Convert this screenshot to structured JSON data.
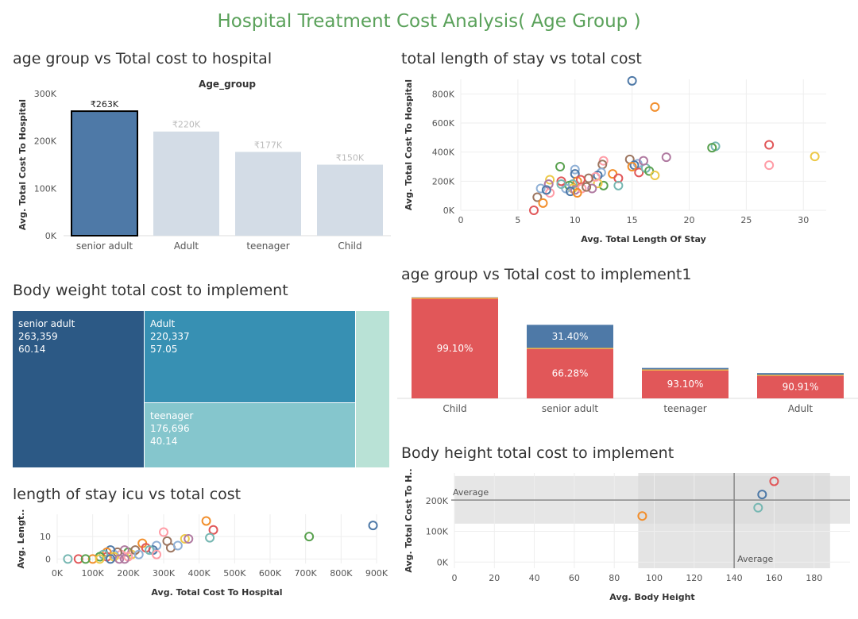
{
  "dashboard_title": "Hospital Treatment Cost Analysis( Age Group )",
  "colors": {
    "title": "#5aa15a",
    "bar_highlight": "#4e79a7",
    "bar_muted": "#d3dce6",
    "stack_primary": "#e15759",
    "stack_secondary": "#4e79a7",
    "treemap": [
      "#2c5985",
      "#3790b3",
      "#85c6cd",
      "#b9e2d6"
    ]
  },
  "chart_data": [
    {
      "id": "bar",
      "type": "bar",
      "title": "age group vs Total cost to hospital",
      "header": "Age_group",
      "ylabel": "Avg. Total Cost To Hospital",
      "categories": [
        "senior adult",
        "Adult",
        "teenager",
        "Child"
      ],
      "values": [
        263000,
        220000,
        177000,
        150000
      ],
      "labels": [
        "₹263K",
        "₹220K",
        "₹177K",
        "₹150K"
      ],
      "yticks": [
        "0K",
        "100K",
        "200K",
        "300K"
      ],
      "ylim": [
        0,
        300000
      ],
      "highlighted": "senior adult"
    },
    {
      "id": "scatter_stay",
      "type": "scatter",
      "title": "total length of stay vs total cost",
      "xlabel": "Avg. Total Length Of Stay",
      "ylabel": "Avg. Total Cost To Hospital",
      "xticks": [
        "0",
        "5",
        "10",
        "15",
        "20",
        "25",
        "30"
      ],
      "yticks": [
        "0K",
        "200K",
        "400K",
        "600K",
        "800K"
      ],
      "xlim": [
        0,
        32
      ],
      "ylim": [
        0,
        900000
      ],
      "points": [
        [
          15,
          890000
        ],
        [
          17,
          710000
        ],
        [
          27,
          450000
        ],
        [
          22.3,
          440000
        ],
        [
          22,
          430000
        ],
        [
          31,
          370000
        ],
        [
          18,
          365000
        ],
        [
          27,
          310000
        ],
        [
          14.8,
          350000
        ],
        [
          15.5,
          320000
        ],
        [
          15.2,
          310000
        ],
        [
          15,
          300000
        ],
        [
          15.6,
          260000
        ],
        [
          16.2,
          290000
        ],
        [
          16.5,
          270000
        ],
        [
          17,
          240000
        ],
        [
          16,
          340000
        ],
        [
          12.5,
          340000
        ],
        [
          12.4,
          315000
        ],
        [
          12.3,
          260000
        ],
        [
          12,
          240000
        ],
        [
          13.3,
          250000
        ],
        [
          13.8,
          220000
        ],
        [
          13.8,
          170000
        ],
        [
          12.5,
          170000
        ],
        [
          12,
          185000
        ],
        [
          11.5,
          150000
        ],
        [
          11.8,
          230000
        ],
        [
          11.2,
          220000
        ],
        [
          10,
          280000
        ],
        [
          10,
          250000
        ],
        [
          10.2,
          200000
        ],
        [
          10.5,
          210000
        ],
        [
          9.8,
          180000
        ],
        [
          9.5,
          170000
        ],
        [
          9.8,
          150000
        ],
        [
          10,
          140000
        ],
        [
          10.6,
          150000
        ],
        [
          11,
          160000
        ],
        [
          9.2,
          150000
        ],
        [
          9.6,
          130000
        ],
        [
          10.2,
          120000
        ],
        [
          8.8,
          200000
        ],
        [
          8.8,
          180000
        ],
        [
          8.7,
          300000
        ],
        [
          7.8,
          210000
        ],
        [
          7.7,
          180000
        ],
        [
          7.8,
          120000
        ],
        [
          6.7,
          90000
        ],
        [
          7,
          150000
        ],
        [
          7.5,
          140000
        ],
        [
          7.2,
          50000
        ],
        [
          6.4,
          0
        ]
      ]
    },
    {
      "id": "treemap",
      "type": "treemap",
      "title": "Body weight total cost to implement",
      "nodes": [
        {
          "name": "senior adult",
          "cost": "263,359",
          "weight": "60.14"
        },
        {
          "name": "Adult",
          "cost": "220,337",
          "weight": "57.05"
        },
        {
          "name": "teenager",
          "cost": "176,696",
          "weight": "40.14"
        },
        {
          "name": "",
          "cost": "",
          "weight": ""
        }
      ]
    },
    {
      "id": "stacked",
      "type": "bar",
      "title": "age group vs Total cost to implement1",
      "categories": [
        "Child",
        "senior adult",
        "teenager",
        "Adult"
      ],
      "totals": [
        0.98,
        0.73,
        0.295,
        0.245
      ],
      "series": [
        {
          "values": [
            99.1,
            66.28,
            93.1,
            90.91
          ],
          "labels": [
            "99.10%",
            "66.28%",
            "93.10%",
            "90.91%"
          ]
        },
        {
          "values": [
            0.9,
            31.4,
            6.9,
            9.09
          ],
          "labels": [
            "",
            "31.40%",
            "",
            ""
          ]
        }
      ]
    },
    {
      "id": "scatter_icu",
      "type": "scatter",
      "title": "length of stay icu vs total cost",
      "xlabel": "Avg. Total Cost To Hospital",
      "ylabel": "Avg. Lengt..",
      "xticks": [
        "0K",
        "100K",
        "200K",
        "300K",
        "400K",
        "500K",
        "600K",
        "700K",
        "800K",
        "900K"
      ],
      "yticks": [
        "0",
        "10"
      ],
      "xlim": [
        0,
        900000
      ],
      "ylim": [
        -2,
        20
      ],
      "points": [
        [
          890000,
          15
        ],
        [
          420000,
          17
        ],
        [
          440000,
          13
        ],
        [
          430000,
          9.5
        ],
        [
          710000,
          10
        ],
        [
          360000,
          9
        ],
        [
          370000,
          9
        ],
        [
          300000,
          12
        ],
        [
          310000,
          8
        ],
        [
          280000,
          6
        ],
        [
          270000,
          4
        ],
        [
          240000,
          7
        ],
        [
          250000,
          5
        ],
        [
          260000,
          4
        ],
        [
          200000,
          3
        ],
        [
          210000,
          2
        ],
        [
          190000,
          4
        ],
        [
          180000,
          2
        ],
        [
          170000,
          3
        ],
        [
          160000,
          2
        ],
        [
          150000,
          4
        ],
        [
          140000,
          3
        ],
        [
          140000,
          1
        ],
        [
          130000,
          2
        ],
        [
          120000,
          1
        ],
        [
          160000,
          1
        ],
        [
          175000,
          0
        ],
        [
          200000,
          1
        ],
        [
          220000,
          4
        ],
        [
          230000,
          2
        ],
        [
          150000,
          0
        ],
        [
          100000,
          0
        ],
        [
          60000,
          0
        ],
        [
          30000,
          0
        ],
        [
          80000,
          0
        ],
        [
          120000,
          0
        ],
        [
          190000,
          0
        ],
        [
          280000,
          2
        ],
        [
          320000,
          5
        ],
        [
          340000,
          6
        ]
      ]
    },
    {
      "id": "scatter_height",
      "type": "scatter",
      "title": "Body height total cost to implement",
      "xlabel": "Avg. Body Height",
      "ylabel": "Avg. Total Cost To H..",
      "xticks": [
        "0",
        "20",
        "40",
        "60",
        "80",
        "100",
        "120",
        "140",
        "160",
        "180"
      ],
      "yticks": [
        "0K",
        "100K",
        "200K"
      ],
      "xlim": [
        0,
        198
      ],
      "ylim": [
        -20000,
        290000
      ],
      "avg_x": 140,
      "avg_y": 202000,
      "avg_label": "Average",
      "band_x": [
        92,
        188
      ],
      "band_y": [
        125000,
        280000
      ],
      "points": [
        [
          160,
          263000
        ],
        [
          154,
          220000
        ],
        [
          152,
          177000
        ],
        [
          94,
          150000
        ]
      ]
    }
  ]
}
